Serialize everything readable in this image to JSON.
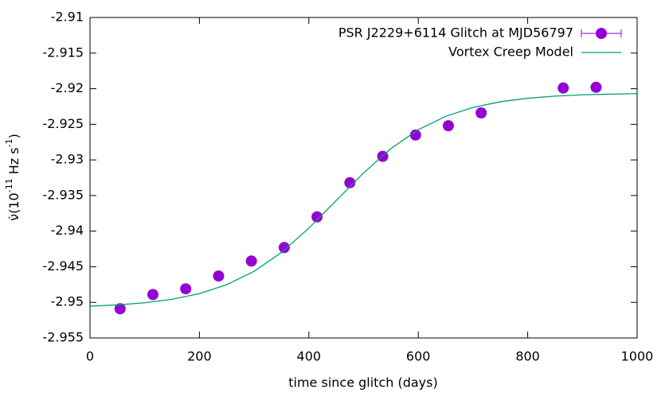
{
  "chart_data": {
    "type": "scatter-line",
    "xlabel": "time since glitch (days)",
    "ylabel": {
      "pre": "ν̇(10",
      "exp1": "-11",
      "mid": " Hz s",
      "exp2": "-1",
      "post": ")"
    },
    "xlim": [
      0,
      1000
    ],
    "xticks": [
      0,
      200,
      400,
      600,
      800,
      1000
    ],
    "ylim": [
      -2.955,
      -2.91
    ],
    "yticks": [
      -2.955,
      -2.95,
      -2.945,
      -2.94,
      -2.935,
      -2.93,
      -2.925,
      -2.92,
      -2.915,
      -2.91
    ],
    "legend": "top-right",
    "series": [
      {
        "name": "PSR J2229+6114 Glitch at MJD56797",
        "color": "#9400d3",
        "kind": "points",
        "x": [
          55,
          115,
          175,
          235,
          295,
          355,
          415,
          475,
          535,
          595,
          655,
          715,
          865,
          925
        ],
        "values": [
          -2.9509,
          -2.9489,
          -2.9481,
          -2.9463,
          -2.9442,
          -2.9423,
          -2.938,
          -2.9332,
          -2.9295,
          -2.9265,
          -2.9252,
          -2.9234,
          -2.9199,
          -2.9198
        ]
      },
      {
        "name": "Vortex Creep Model",
        "color": "#009e73",
        "kind": "line",
        "x": [
          0,
          50,
          100,
          150,
          200,
          250,
          300,
          350,
          400,
          450,
          500,
          550,
          600,
          650,
          700,
          750,
          800,
          850,
          900,
          950,
          1000
        ],
        "values": [
          -2.95054,
          -2.95036,
          -2.95006,
          -2.94957,
          -2.94877,
          -2.94752,
          -2.94564,
          -2.94299,
          -2.93958,
          -2.9357,
          -2.93182,
          -2.92841,
          -2.92576,
          -2.92388,
          -2.92263,
          -2.92183,
          -2.92134,
          -2.92104,
          -2.92086,
          -2.92076,
          -2.92069
        ]
      }
    ]
  }
}
